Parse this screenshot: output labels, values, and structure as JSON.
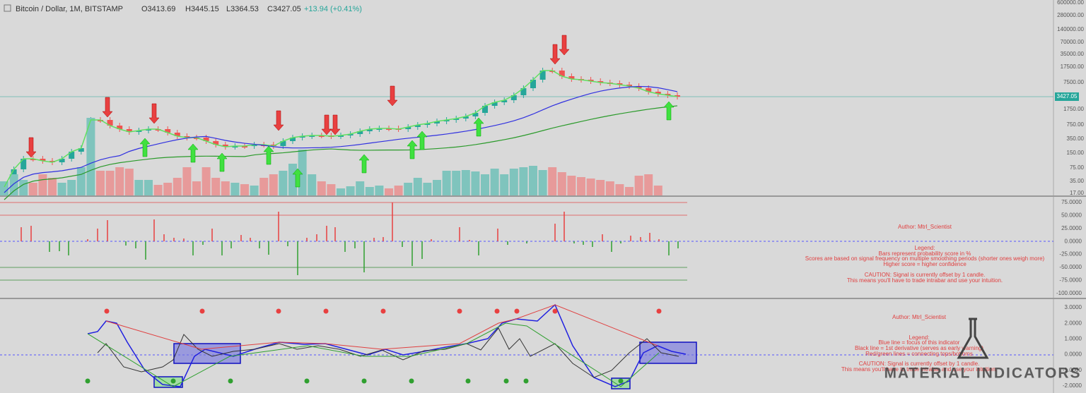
{
  "header": {
    "symbol": "Bitcoin / Dollar, 1M, BITSTAMP",
    "open": "O3413.69",
    "high": "H3445.15",
    "low": "L3364.53",
    "close": "C3427.05",
    "change": "+13.94 (+0.41%)"
  },
  "price_axis": [
    "600000.00",
    "280000.00",
    "140000.00",
    "70000.00",
    "35000.00",
    "17500.00",
    "7500.00",
    "1750.00",
    "750.00",
    "350.00",
    "150.00",
    "75.00",
    "35.00",
    "17.00"
  ],
  "last_price": "3427.05",
  "middle_axis": [
    "75.0000",
    "50.0000",
    "25.0000",
    "0.0000",
    "-25.0000",
    "-50.0000",
    "-75.0000",
    "-100.0000"
  ],
  "bottom_axis": [
    "3.0000",
    "2.0000",
    "1.0000",
    "0.0000",
    "-1.0000",
    "-2.0000"
  ],
  "middle_notes": [
    "Author: Mtrl_Scientist",
    "Legend:",
    "Bars represent probability score in %",
    "Scores are based on signal frequency on multiple smoothing periods (shorter ones weigh more)",
    "Higher score = higher confidence",
    "CAUTION: Signal is currently offset by 1 candle.",
    "This means you'll have to trade intrabar and use your intuition."
  ],
  "bottom_notes": [
    "Author: Mtrl_Scientist",
    "Legend:",
    "Blue line = focus of this indicator",
    "Black line = 1st derivative (serves as early warning)",
    "Red/green lines = connecting tops/bottoms",
    "CAUTION: Signal is currently offset by 1 candle.",
    "This means you'll have to trade intrabar and use your intuition."
  ],
  "watermark": "MATERIAL INDICATORS"
}
